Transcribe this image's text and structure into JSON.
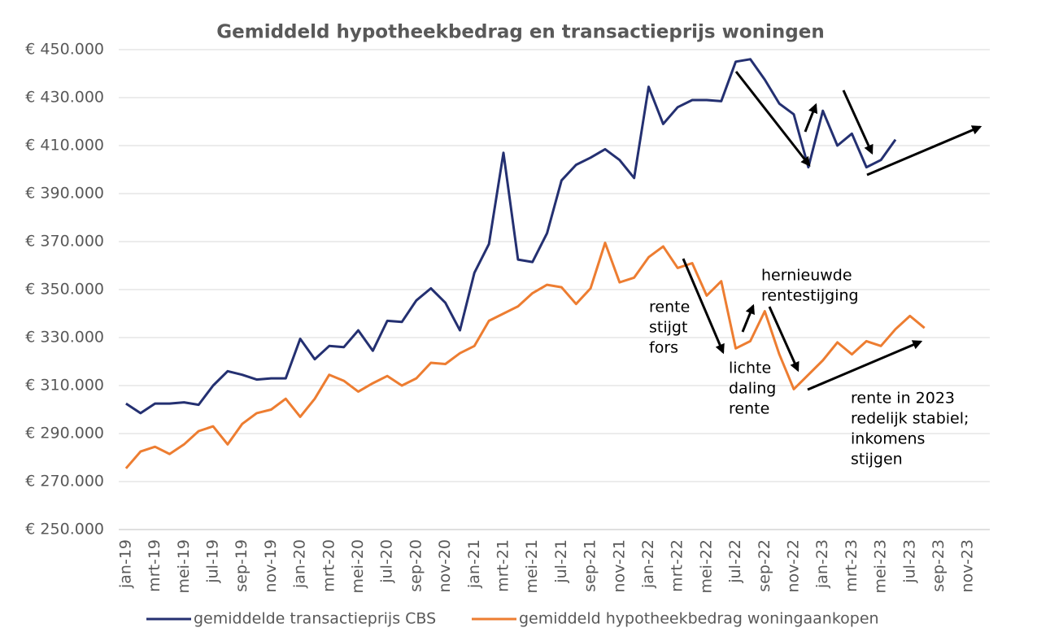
{
  "chart_data": {
    "type": "line",
    "title": "Gemiddeld hypotheekbedrag en transactieprijs woningen",
    "categories": [
      "jan-19",
      null,
      "mrt-19",
      null,
      "mei-19",
      null,
      "jul-19",
      null,
      "sep-19",
      null,
      "nov-19",
      null,
      "jan-20",
      null,
      "mrt-20",
      null,
      "mei-20",
      null,
      "jul-20",
      null,
      "sep-20",
      null,
      "nov-20",
      null,
      "jan-21",
      null,
      "mrt-21",
      null,
      "mei-21",
      null,
      "jul-21",
      null,
      "sep-21",
      null,
      "nov-21",
      null,
      "jan-22",
      null,
      "mrt-22",
      null,
      "mei-22",
      null,
      "jul-22",
      null,
      "sep-22",
      null,
      "nov-22",
      null,
      "jan-23",
      null,
      "mrt-23",
      null,
      "mei-23",
      null,
      "jul-23",
      null,
      "sep-23",
      null,
      "nov-23",
      null
    ],
    "series": [
      {
        "name": "gemiddelde transactieprijs CBS",
        "color": "#243071",
        "values": [
          302500,
          298500,
          302500,
          302500,
          303000,
          302000,
          310000,
          316000,
          314500,
          312500,
          313000,
          313000,
          329500,
          321000,
          326500,
          326000,
          333000,
          324500,
          337000,
          336500,
          345500,
          350500,
          344500,
          333000,
          357000,
          369000,
          407000,
          362500,
          361500,
          373500,
          395500,
          402000,
          405000,
          408500,
          404000,
          396500,
          434500,
          419000,
          426000,
          429000,
          429000,
          428500,
          445000,
          446000,
          437500,
          427500,
          423000,
          401000,
          424500,
          410000,
          415000,
          401000,
          404000,
          412500,
          null,
          null,
          null,
          null,
          null,
          null
        ]
      },
      {
        "name": "gemiddeld hypotheekbedrag woningaankopen",
        "color": "#ed7d31",
        "values": [
          275500,
          282500,
          284500,
          281500,
          285500,
          291000,
          293000,
          285500,
          294000,
          298500,
          300000,
          304500,
          297000,
          304500,
          314500,
          312000,
          307500,
          311000,
          314000,
          310000,
          313000,
          319500,
          319000,
          323500,
          326500,
          337000,
          340000,
          343000,
          348500,
          352000,
          351000,
          344000,
          350500,
          369500,
          353000,
          355000,
          363500,
          368000,
          359000,
          361000,
          347500,
          353500,
          325500,
          328500,
          341000,
          323000,
          308500,
          314500,
          320500,
          328000,
          323000,
          328500,
          326500,
          333500,
          339000,
          334000,
          null,
          null,
          null,
          null
        ]
      }
    ],
    "ylim": [
      250000,
      450000
    ],
    "yticks": [
      {
        "value": 250000,
        "label": "€ 250.000"
      },
      {
        "value": 270000,
        "label": "€ 270.000"
      },
      {
        "value": 290000,
        "label": "€ 290.000"
      },
      {
        "value": 310000,
        "label": "€ 310.000"
      },
      {
        "value": 330000,
        "label": "€ 330.000"
      },
      {
        "value": 350000,
        "label": "€ 350.000"
      },
      {
        "value": 370000,
        "label": "€ 370.000"
      },
      {
        "value": 390000,
        "label": "€ 390.000"
      },
      {
        "value": 410000,
        "label": "€ 410.000"
      },
      {
        "value": 430000,
        "label": "€ 430.000"
      },
      {
        "value": 450000,
        "label": "€ 450.000"
      }
    ],
    "grid": true,
    "legend": "bottom",
    "annotations": [
      [
        "rente",
        "stijgt",
        "fors"
      ],
      [
        "hernieuwde",
        "rentestijging"
      ],
      [
        "lichte",
        "daling",
        "rente"
      ],
      [
        "rente in 2023",
        "redelijk stabiel;",
        "inkomens",
        "stijgen"
      ]
    ]
  }
}
